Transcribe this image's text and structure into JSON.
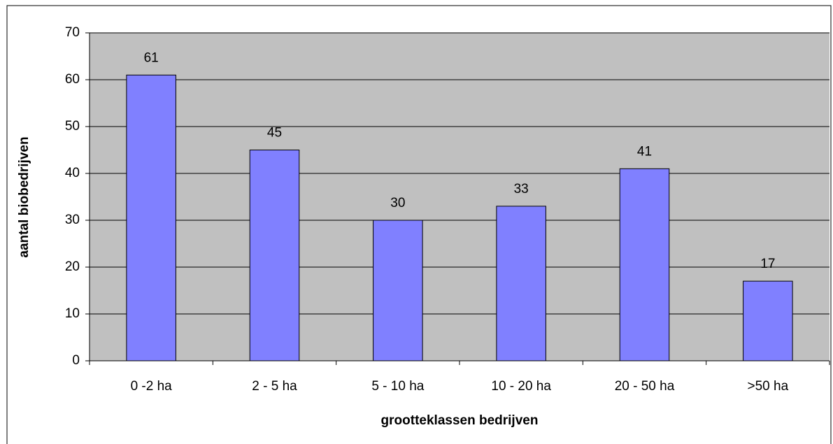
{
  "chart_data": {
    "type": "bar",
    "x_label": "grootteklassen bedrijven",
    "y_label": "aantal biobedrijven",
    "categories": [
      "0 -2 ha",
      "2 - 5 ha",
      "5 - 10 ha",
      "10 - 20 ha",
      "20 - 50 ha",
      ">50 ha"
    ],
    "values": [
      61,
      45,
      30,
      33,
      41,
      17
    ],
    "color": "#8080ff",
    "ylim": [
      0,
      70
    ],
    "yticks": [
      0,
      10,
      20,
      30,
      40,
      50,
      60,
      70
    ],
    "grid": true
  }
}
